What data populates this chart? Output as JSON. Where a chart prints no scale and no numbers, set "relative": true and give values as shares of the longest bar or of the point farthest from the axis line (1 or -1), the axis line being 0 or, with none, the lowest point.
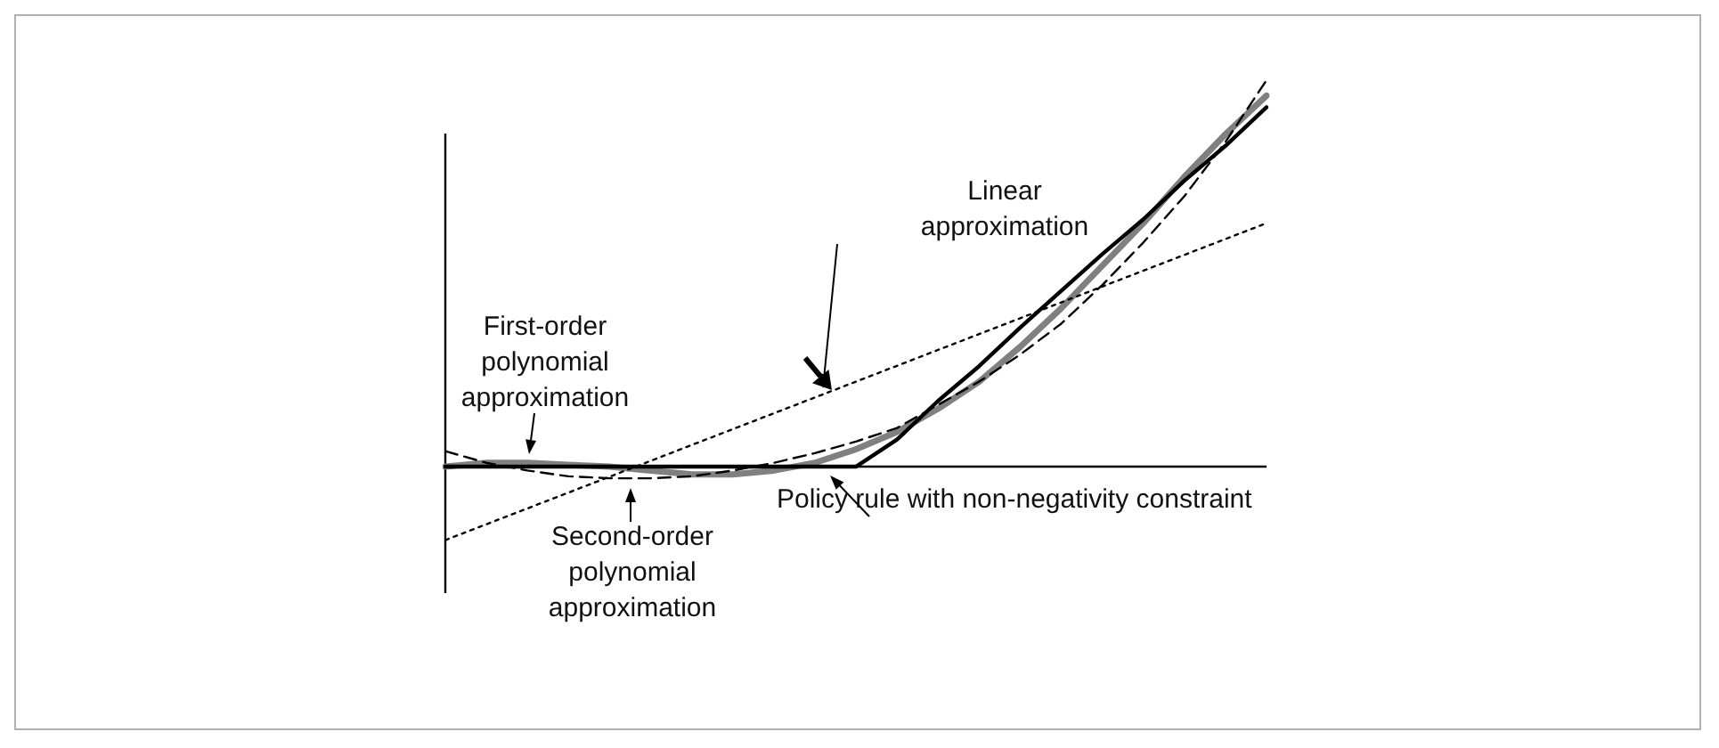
{
  "chart_data": {
    "type": "line",
    "relative": true,
    "marker": "none",
    "categories": [
      null,
      null,
      null,
      null,
      null,
      null,
      null,
      null,
      null,
      null,
      null,
      null,
      null,
      null,
      null,
      null,
      null,
      null,
      null,
      null,
      null
    ],
    "annotations": [
      "Policy rule with non-negativity constraint",
      "Linear approximation",
      "First-order polynomial approximation",
      "Second-order polynomial approximation"
    ],
    "series": [
      {
        "color": "#000000",
        "line_style": "solid",
        "values": [
          0,
          0,
          0,
          0,
          0,
          0,
          0,
          0,
          0,
          0,
          0,
          0.07,
          0.17,
          0.26,
          0.36,
          0.455,
          0.55,
          0.64,
          0.74,
          0.83,
          0.93
        ]
      },
      {
        "color": "#000000",
        "line_style": "dotted",
        "values": [
          -0.19,
          -0.149,
          -0.108,
          -0.067,
          -0.026,
          0.015,
          0.056,
          0.097,
          0.138,
          0.179,
          0.22,
          0.261,
          0.302,
          0.343,
          0.384,
          0.425,
          0.466,
          0.507,
          0.548,
          0.589,
          0.63
        ]
      },
      {
        "color": "#808080",
        "line_style": "solid",
        "values": [
          0,
          0.01,
          0.01,
          0.005,
          0,
          -0.01,
          -0.02,
          -0.02,
          -0.01,
          0.01,
          0.045,
          0.09,
          0.15,
          0.22,
          0.31,
          0.41,
          0.52,
          0.63,
          0.75,
          0.86,
          0.96
        ]
      },
      {
        "color": "#000000",
        "line_style": "dashed",
        "values": [
          0.04,
          0.01,
          -0.01,
          -0.025,
          -0.03,
          -0.03,
          -0.025,
          -0.01,
          0.01,
          0.035,
          0.065,
          0.1,
          0.16,
          0.22,
          0.29,
          0.37,
          0.47,
          0.58,
          0.7,
          0.84,
          1.0
        ]
      }
    ]
  }
}
